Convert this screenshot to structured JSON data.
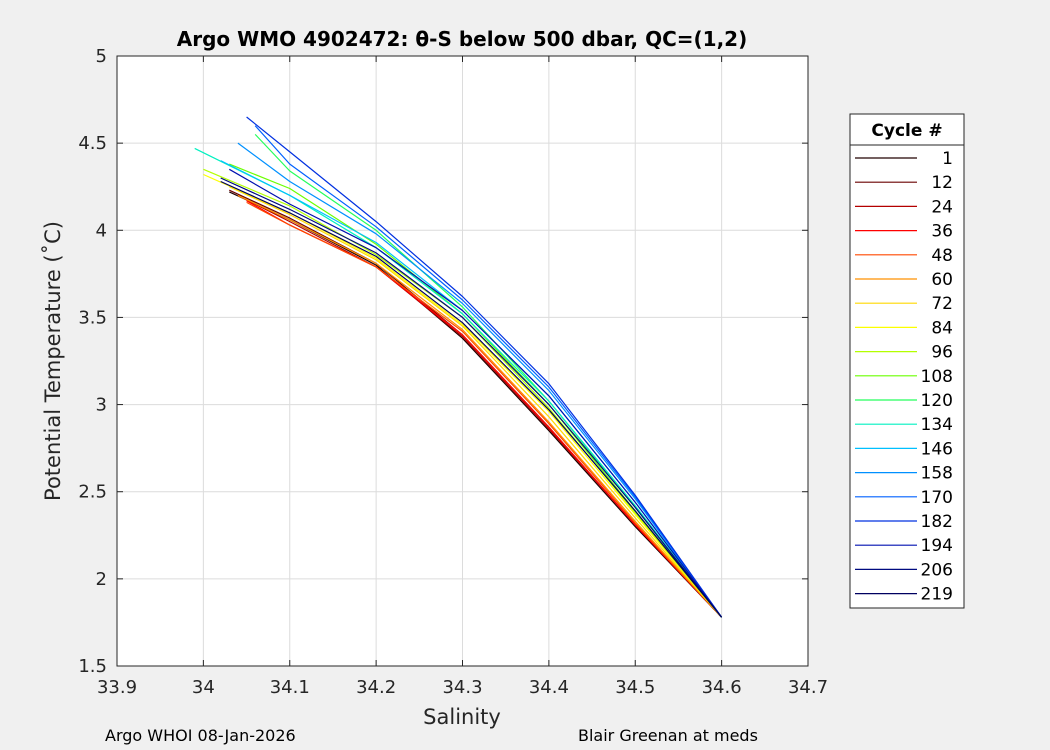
{
  "chart_data": {
    "type": "line",
    "title": "Argo WMO 4902472: θ-S below 500 dbar,  QC=(1,2)",
    "xlabel": "Salinity",
    "ylabel": "Potential Temperature (˚C)",
    "xlim": [
      33.9,
      34.7
    ],
    "ylim": [
      1.5,
      5
    ],
    "xticks": [
      "33.9",
      "34",
      "34.1",
      "34.2",
      "34.3",
      "34.4",
      "34.5",
      "34.6",
      "34.7"
    ],
    "yticks": [
      "1.5",
      "2",
      "2.5",
      "3",
      "3.5",
      "4",
      "4.5",
      "5"
    ],
    "grid": true,
    "legend": {
      "title": "Cycle #",
      "placement": "right outside",
      "entries": [
        "1",
        "12",
        "24",
        "36",
        "48",
        "60",
        "72",
        "84",
        "96",
        "108",
        "120",
        "134",
        "146",
        "158",
        "170",
        "182",
        "194",
        "206",
        "219"
      ],
      "colors": [
        "#200000",
        "#6a0000",
        "#b40000",
        "#ff0000",
        "#ff4800",
        "#ff9000",
        "#ffd800",
        "#fcff00",
        "#b4ff00",
        "#6cff00",
        "#24ff5c",
        "#00f0c0",
        "#00c0ff",
        "#0090ff",
        "#0060ff",
        "#0030e0",
        "#0010b0",
        "#000a80",
        "#000060"
      ]
    },
    "series": [
      {
        "name": "1",
        "color": "#200000",
        "x": [
          34.03,
          34.1,
          34.2,
          34.3,
          34.4,
          34.5,
          34.6
        ],
        "y": [
          4.22,
          4.06,
          3.8,
          3.38,
          2.85,
          2.3,
          1.78
        ]
      },
      {
        "name": "12",
        "color": "#6a0000",
        "x": [
          34.03,
          34.1,
          34.2,
          34.3,
          34.4,
          34.5,
          34.6
        ],
        "y": [
          4.23,
          4.07,
          3.81,
          3.4,
          2.87,
          2.31,
          1.78
        ]
      },
      {
        "name": "24",
        "color": "#b40000",
        "x": [
          34.04,
          34.1,
          34.2,
          34.3,
          34.4,
          34.5,
          34.6
        ],
        "y": [
          4.2,
          4.05,
          3.79,
          3.39,
          2.86,
          2.31,
          1.78
        ]
      },
      {
        "name": "36",
        "color": "#ff0000",
        "x": [
          34.05,
          34.1,
          34.2,
          34.3,
          34.4,
          34.5,
          34.6
        ],
        "y": [
          4.17,
          4.03,
          3.79,
          3.4,
          2.87,
          2.31,
          1.78
        ]
      },
      {
        "name": "48",
        "color": "#ff4800",
        "x": [
          34.05,
          34.1,
          34.2,
          34.3,
          34.4,
          34.5,
          34.6
        ],
        "y": [
          4.16,
          4.03,
          3.79,
          3.42,
          2.89,
          2.32,
          1.78
        ]
      },
      {
        "name": "60",
        "color": "#ff9000",
        "x": [
          34.04,
          34.1,
          34.2,
          34.3,
          34.4,
          34.5,
          34.6
        ],
        "y": [
          4.2,
          4.06,
          3.81,
          3.43,
          2.9,
          2.33,
          1.78
        ]
      },
      {
        "name": "72",
        "color": "#ffd800",
        "x": [
          34.03,
          34.1,
          34.2,
          34.3,
          34.4,
          34.5,
          34.6
        ],
        "y": [
          4.25,
          4.09,
          3.83,
          3.45,
          2.93,
          2.35,
          1.78
        ]
      },
      {
        "name": "84",
        "color": "#fcff00",
        "x": [
          34.0,
          34.1,
          34.2,
          34.3,
          34.4,
          34.5,
          34.6
        ],
        "y": [
          4.32,
          4.1,
          3.84,
          3.46,
          2.96,
          2.37,
          1.78
        ]
      },
      {
        "name": "96",
        "color": "#b4ff00",
        "x": [
          34.0,
          34.1,
          34.2,
          34.3,
          34.4,
          34.5,
          34.6
        ],
        "y": [
          4.35,
          4.14,
          3.86,
          3.5,
          2.98,
          2.38,
          1.78
        ]
      },
      {
        "name": "108",
        "color": "#6cff00",
        "x": [
          34.03,
          34.1,
          34.2,
          34.3,
          34.4,
          34.5,
          34.6
        ],
        "y": [
          4.38,
          4.24,
          3.92,
          3.52,
          3.0,
          2.39,
          1.78
        ]
      },
      {
        "name": "120",
        "color": "#24ff5c",
        "x": [
          34.06,
          34.1,
          34.2,
          34.3,
          34.4,
          34.5,
          34.6
        ],
        "y": [
          4.55,
          4.34,
          4.0,
          3.56,
          3.02,
          2.41,
          1.78
        ]
      },
      {
        "name": "134",
        "color": "#00f0c0",
        "x": [
          33.99,
          34.1,
          34.2,
          34.3,
          34.4,
          34.5,
          34.6
        ],
        "y": [
          4.47,
          4.2,
          3.9,
          3.52,
          3.02,
          2.42,
          1.78
        ]
      },
      {
        "name": "146",
        "color": "#00c0ff",
        "x": [
          34.02,
          34.1,
          34.2,
          34.3,
          34.4,
          34.5,
          34.6
        ],
        "y": [
          4.4,
          4.2,
          3.93,
          3.54,
          3.05,
          2.44,
          1.78
        ]
      },
      {
        "name": "158",
        "color": "#0090ff",
        "x": [
          34.04,
          34.1,
          34.2,
          34.3,
          34.4,
          34.5,
          34.6
        ],
        "y": [
          4.5,
          4.28,
          3.98,
          3.58,
          3.08,
          2.46,
          1.78
        ]
      },
      {
        "name": "170",
        "color": "#0060ff",
        "x": [
          34.06,
          34.1,
          34.2,
          34.3,
          34.4,
          34.5,
          34.6
        ],
        "y": [
          4.6,
          4.38,
          4.02,
          3.6,
          3.1,
          2.47,
          1.78
        ]
      },
      {
        "name": "182",
        "color": "#0030e0",
        "x": [
          34.05,
          34.1,
          34.2,
          34.3,
          34.4,
          34.5,
          34.6
        ],
        "y": [
          4.65,
          4.45,
          4.05,
          3.62,
          3.12,
          2.48,
          1.78
        ]
      },
      {
        "name": "194",
        "color": "#0010b0",
        "x": [
          34.03,
          34.1,
          34.2,
          34.3,
          34.4,
          34.5,
          34.6
        ],
        "y": [
          4.35,
          4.15,
          3.9,
          3.54,
          3.05,
          2.44,
          1.78
        ]
      },
      {
        "name": "206",
        "color": "#000a80",
        "x": [
          34.02,
          34.1,
          34.2,
          34.3,
          34.4,
          34.5,
          34.6
        ],
        "y": [
          4.3,
          4.12,
          3.87,
          3.5,
          3.0,
          2.41,
          1.78
        ]
      },
      {
        "name": "219",
        "color": "#000060",
        "x": [
          34.02,
          34.1,
          34.2,
          34.3,
          34.4,
          34.5,
          34.6
        ],
        "y": [
          4.28,
          4.1,
          3.85,
          3.47,
          2.97,
          2.39,
          1.78
        ]
      }
    ]
  },
  "footer": {
    "left": "Argo WHOI 08-Jan-2026",
    "right": "Blair Greenan at meds"
  }
}
